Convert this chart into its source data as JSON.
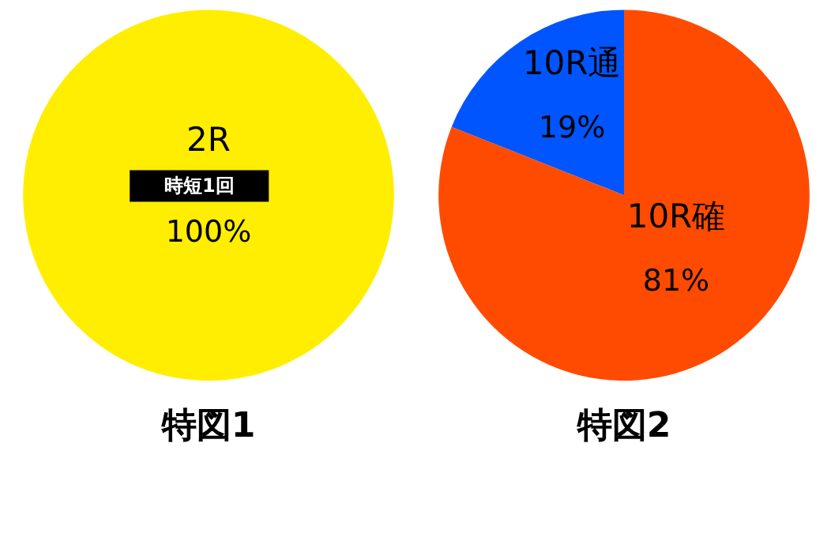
{
  "chart_data": [
    {
      "type": "pie",
      "title": "特図1",
      "categories": [
        "2R"
      ],
      "values": [
        100
      ],
      "colors": [
        "#ffee00"
      ],
      "value_labels": [
        "100%"
      ],
      "annotations": [
        "時短1回"
      ]
    },
    {
      "type": "pie",
      "title": "特図2",
      "categories": [
        "10R通",
        "10R確"
      ],
      "values": [
        19,
        81
      ],
      "colors": [
        "#0055ff",
        "#ff4b00"
      ],
      "value_labels": [
        "19%",
        "81%"
      ]
    }
  ]
}
